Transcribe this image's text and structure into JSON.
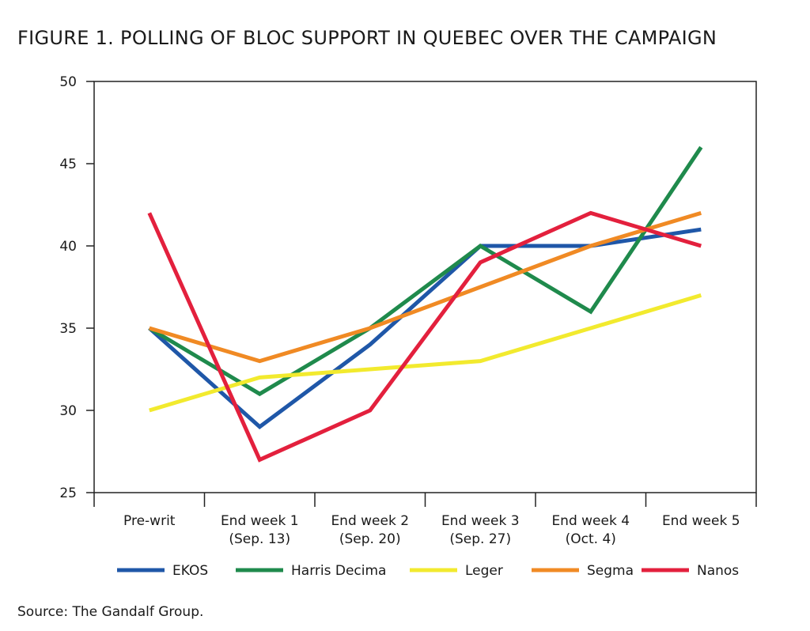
{
  "title": "FIGURE 1. POLLING OF BLOC SUPPORT IN QUEBEC OVER THE CAMPAIGN",
  "source": "Source: The Gandalf Group.",
  "chart_data": {
    "type": "line",
    "title": "FIGURE 1. POLLING OF BLOC SUPPORT IN QUEBEC OVER THE CAMPAIGN",
    "xlabel": "",
    "ylabel": "",
    "categories": [
      [
        "Pre-writ"
      ],
      [
        "End week 1",
        "(Sep. 13)"
      ],
      [
        "End week 2",
        "(Sep. 20)"
      ],
      [
        "End week 3",
        "(Sep. 27)"
      ],
      [
        "End week 4",
        "(Oct. 4)"
      ],
      [
        "End week 5"
      ]
    ],
    "ylim": [
      25,
      50
    ],
    "yticks": [
      25,
      30,
      35,
      40,
      45,
      50
    ],
    "grid": false,
    "legend_position": "bottom",
    "series": [
      {
        "name": "EKOS",
        "color": "#1f57a8",
        "values": [
          35,
          29,
          34,
          40,
          40,
          41
        ]
      },
      {
        "name": "Harris Decima",
        "color": "#1f8a4c",
        "values": [
          35,
          31,
          35,
          40,
          36,
          46
        ]
      },
      {
        "name": "Leger",
        "color": "#f2ea2e",
        "values": [
          30,
          32,
          32.5,
          33,
          35,
          37
        ]
      },
      {
        "name": "Segma",
        "color": "#f08a24",
        "values": [
          35,
          33,
          35,
          37.5,
          40,
          42
        ]
      },
      {
        "name": "Nanos",
        "color": "#e3203d",
        "values": [
          42,
          27,
          30,
          39,
          42,
          40
        ]
      }
    ]
  }
}
